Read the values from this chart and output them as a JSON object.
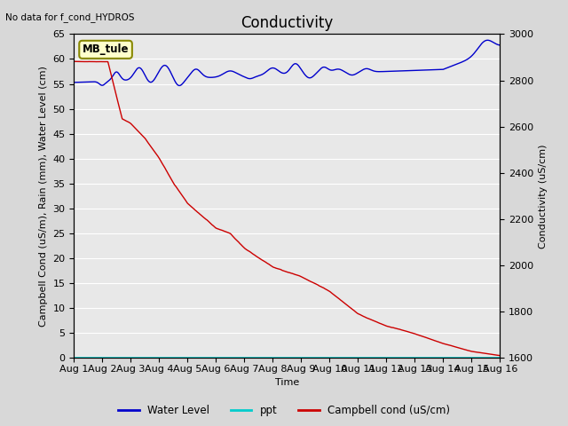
{
  "title": "Conductivity",
  "top_left_text": "No data for f_cond_HYDROS",
  "ylabel_left": "Campbell Cond (uS/m), Rain (mm), Water Level (cm)",
  "ylabel_right": "Conductivity (uS/cm)",
  "xlabel": "Time",
  "ylim_left": [
    0,
    65
  ],
  "ylim_right": [
    1600,
    3000
  ],
  "xlim": [
    0,
    15
  ],
  "xtick_labels": [
    "Aug 1",
    "Aug 2",
    "Aug 3",
    "Aug 4",
    "Aug 5",
    "Aug 6",
    "Aug 7",
    "Aug 8",
    "Aug 9",
    "Aug 10",
    "Aug 11",
    "Aug 12",
    "Aug 13",
    "Aug 14",
    "Aug 15",
    "Aug 16"
  ],
  "ytick_left": [
    0,
    5,
    10,
    15,
    20,
    25,
    30,
    35,
    40,
    45,
    50,
    55,
    60,
    65
  ],
  "ytick_right": [
    1600,
    1800,
    2000,
    2200,
    2400,
    2600,
    2800,
    3000
  ],
  "legend_labels": [
    "Water Level",
    "ppt",
    "Campbell cond (uS/cm)"
  ],
  "legend_colors": [
    "#0000cc",
    "#00cccc",
    "#cc0000"
  ],
  "box_label": "MB_tule",
  "box_bg": "#ffffcc",
  "box_border": "#888800",
  "background_color": "#e8e8e8",
  "grid_color": "#ffffff",
  "title_fontsize": 12,
  "label_fontsize": 8,
  "tick_fontsize": 8
}
